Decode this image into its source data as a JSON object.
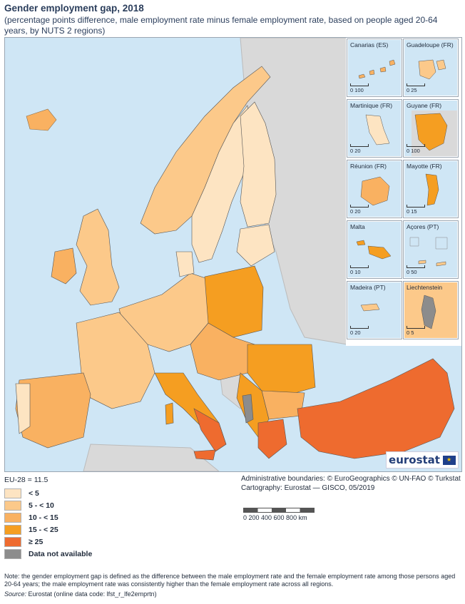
{
  "title": "Gender employment gap, 2018",
  "subtitle": "(percentage points difference, male employment rate minus female employment rate, based on people aged 20-64 years, by NUTS 2 regions)",
  "eu_average": "EU-28 = 11.5",
  "legend": [
    {
      "label": "< 5",
      "color": "#fde4c2"
    },
    {
      "label": "5 - < 10",
      "color": "#fcc98a"
    },
    {
      "label": "10 - < 15",
      "color": "#f9b161"
    },
    {
      "label": "15 - < 25",
      "color": "#f59e21"
    },
    {
      "label": "≥ 25",
      "color": "#ee6b2f"
    },
    {
      "label": "Data not available",
      "color": "#8c8c8c"
    }
  ],
  "insets": [
    {
      "label": "Canarias (ES)",
      "scale": "0   100"
    },
    {
      "label": "Guadeloupe (FR)",
      "scale": "0   25"
    },
    {
      "label": "Martinique (FR)",
      "scale": "0   20"
    },
    {
      "label": "Guyane (FR)",
      "scale": "0   100"
    },
    {
      "label": "Réunion (FR)",
      "scale": "0   20"
    },
    {
      "label": "Mayotte (FR)",
      "scale": "0   15"
    },
    {
      "label": "Malta",
      "scale": "0   10"
    },
    {
      "label": "Açores (PT)",
      "scale": "0   50"
    },
    {
      "label": "Madeira (PT)",
      "scale": "0   20"
    },
    {
      "label": "Liechtenstein",
      "scale": "0   5"
    }
  ],
  "credits": {
    "line1": "Administrative boundaries: © EuroGeographics © UN-FAO © Turkstat",
    "line2": "Cartography: Eurostat — GISCO, 05/2019"
  },
  "scale_labels": "0    200   400   600   800 km",
  "logo_text": "eurostat",
  "note": "Note: the gender employment gap is defined as the difference between the male employment rate and the female employment rate among those persons aged 20-64 years; the male employment rate was consistently higher than the female employment rate across all regions.",
  "source_label": "Source:",
  "source_text": " Eurostat (online data code: lfst_r_lfe2emprtn)"
}
